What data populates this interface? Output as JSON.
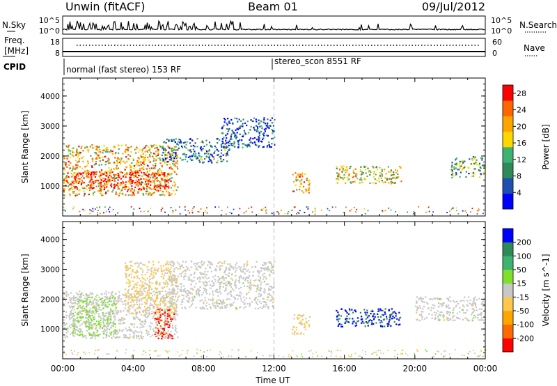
{
  "header": {
    "station": "Unwin (fitACF)",
    "beam": "Beam 01",
    "date": "09/Jul/2012"
  },
  "noise_panel": {
    "left_label": "N.Sky",
    "right_label": "N.Search",
    "left_ticks": [
      "10^5",
      "10^0"
    ],
    "right_ticks": [
      "10^5",
      "10^0"
    ]
  },
  "freq_panel": {
    "left_label_1": "Freq.",
    "left_label_2": "[MHz]",
    "right_label": "Nave",
    "left_ticks": [
      "18",
      "8"
    ],
    "right_ticks": [
      "60",
      "0"
    ]
  },
  "cpid_panel": {
    "label": "CPID",
    "segments": [
      {
        "text": "normal (fast stereo) 153 RF",
        "start_hour": 0
      },
      {
        "text": "stereo_scon 8551 RF",
        "start_hour": 12
      }
    ]
  },
  "colors": {
    "power_scale": [
      "#0000ff",
      "#1f4fb0",
      "#2e8b57",
      "#3cb371",
      "#ffd700",
      "#ffa500",
      "#ff6600",
      "#ff0000"
    ],
    "velocity_scale": [
      "#ff0000",
      "#ff6a00",
      "#ffa500",
      "#ffc84d",
      "#c8c8c8",
      "#7fe02a",
      "#3cb371",
      "#2e8b57",
      "#0000ff"
    ],
    "background": "#ffffff"
  },
  "chart_data": [
    {
      "type": "heatmap",
      "title": "",
      "xlabel": "",
      "ylabel": "Slant Range [km]",
      "xlim_hours": [
        0,
        24
      ],
      "ylim_km": [
        0,
        4600
      ],
      "x_tick_labels": [
        "00:00",
        "04:00",
        "08:00",
        "12:00",
        "16:00",
        "20:00",
        "00:00"
      ],
      "y_ticks": [
        1000,
        2000,
        3000,
        4000
      ],
      "colorbar": {
        "label": "Power [dB]",
        "ticks": [
          4,
          8,
          12,
          16,
          20,
          24,
          28
        ],
        "range": [
          0,
          30
        ]
      },
      "echo_regions": [
        {
          "t0": 0.0,
          "t1": 6.5,
          "r0": 700,
          "r1": 2400,
          "value_dB": 20
        },
        {
          "t0": 0.1,
          "t1": 6.0,
          "r0": 900,
          "r1": 1500,
          "value_dB": 28
        },
        {
          "t0": 5.5,
          "t1": 9.5,
          "r0": 1800,
          "r1": 2600,
          "value_dB": 8
        },
        {
          "t0": 9.0,
          "t1": 12.0,
          "r0": 2300,
          "r1": 3300,
          "value_dB": 6
        },
        {
          "t0": 13.0,
          "t1": 14.0,
          "r0": 800,
          "r1": 1500,
          "value_dB": 20
        },
        {
          "t0": 15.5,
          "t1": 19.2,
          "r0": 1100,
          "r1": 1700,
          "value_dB": 16
        },
        {
          "t0": 22.0,
          "t1": 24.0,
          "r0": 1300,
          "r1": 2000,
          "value_dB": 12
        }
      ]
    },
    {
      "type": "heatmap",
      "title": "",
      "xlabel": "Time UT",
      "ylabel": "Slant Range [km]",
      "xlim_hours": [
        0,
        24
      ],
      "ylim_km": [
        0,
        4600
      ],
      "x_tick_labels": [
        "00:00",
        "04:00",
        "08:00",
        "12:00",
        "16:00",
        "20:00",
        "00:00"
      ],
      "y_ticks": [
        1000,
        2000,
        3000,
        4000
      ],
      "colorbar": {
        "label": "Velocity [m s^-1]",
        "ticks": [
          -200,
          -100,
          -50,
          -15,
          15,
          50,
          100,
          200
        ],
        "range": [
          -250,
          250
        ]
      },
      "echo_regions": [
        {
          "t0": 0.0,
          "t1": 6.5,
          "r0": 700,
          "r1": 2300,
          "value_ms": 0
        },
        {
          "t0": 0.5,
          "t1": 3.0,
          "r0": 800,
          "r1": 2100,
          "value_ms": 40
        },
        {
          "t0": 3.5,
          "t1": 6.5,
          "r0": 1500,
          "r1": 3300,
          "value_ms": -40
        },
        {
          "t0": 5.2,
          "t1": 6.3,
          "r0": 700,
          "r1": 1700,
          "value_ms": -200
        },
        {
          "t0": 6.0,
          "t1": 12.0,
          "r0": 1700,
          "r1": 3300,
          "value_ms": 0
        },
        {
          "t0": 13.0,
          "t1": 14.0,
          "r0": 800,
          "r1": 1500,
          "value_ms": -40
        },
        {
          "t0": 15.5,
          "t1": 19.2,
          "r0": 1100,
          "r1": 1700,
          "value_ms": 200
        },
        {
          "t0": 20.0,
          "t1": 24.0,
          "r0": 1300,
          "r1": 2100,
          "value_ms": 0
        }
      ]
    }
  ]
}
